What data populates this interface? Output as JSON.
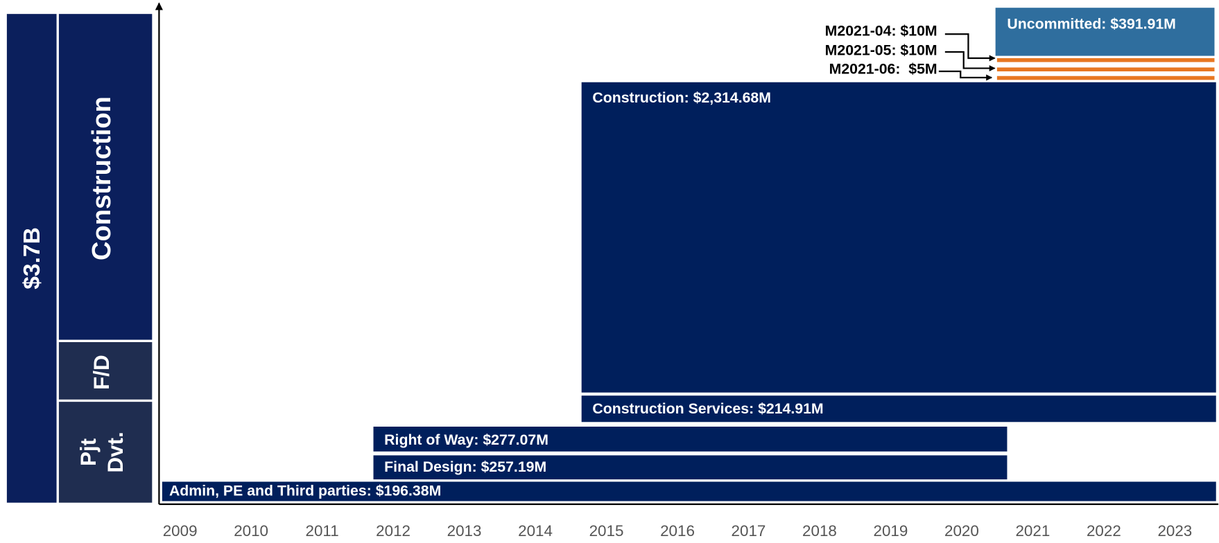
{
  "total": "$3.7B",
  "phases": [
    {
      "label": "Construction"
    },
    {
      "label": "F/D"
    },
    {
      "lines": [
        "Pjt",
        "Dvt."
      ]
    }
  ],
  "bars": [
    {
      "label": "Admin, PE and Third parties: $196.38M"
    },
    {
      "label": "Final Design: $257.19M"
    },
    {
      "label": "Right of Way: $277.07M"
    },
    {
      "label": "Construction Services: $214.91M"
    },
    {
      "label": "Construction: $2,314.68M"
    },
    {
      "label": "Uncommitted: $391.91M"
    }
  ],
  "callouts": [
    {
      "label": "M2021-04: $10M"
    },
    {
      "label": "M2021-05: $10M"
    },
    {
      "label": "M2021-06:  $5M"
    }
  ],
  "years": [
    "2009",
    "2010",
    "2011",
    "2012",
    "2013",
    "2014",
    "2015",
    "2016",
    "2017",
    "2018",
    "2019",
    "2020",
    "2021",
    "2022",
    "2023"
  ]
}
